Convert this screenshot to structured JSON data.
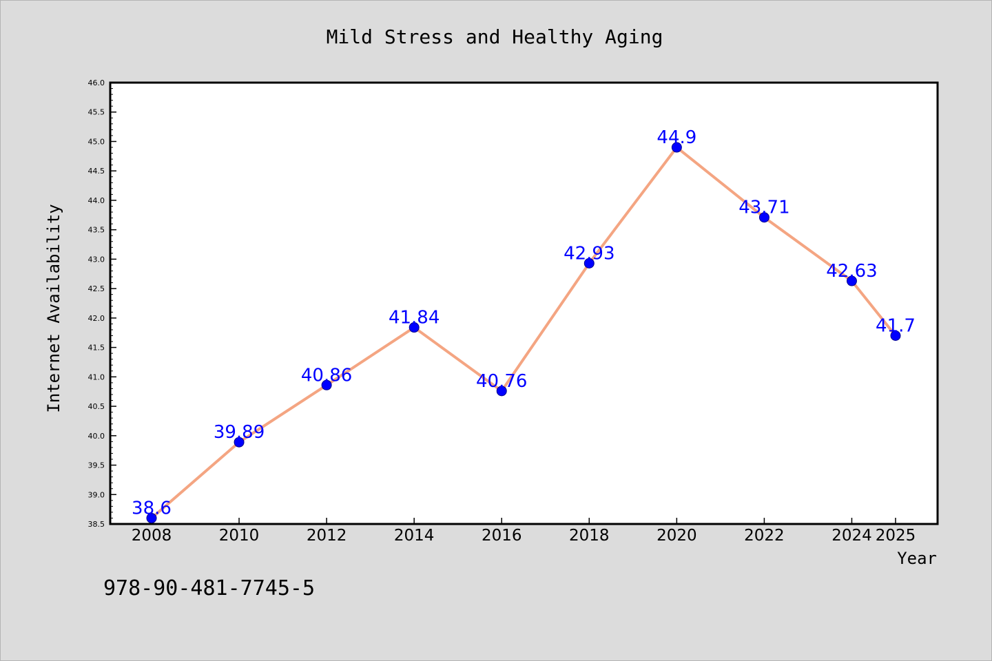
{
  "chart_data": {
    "type": "line",
    "title": "Mild Stress and Healthy Aging",
    "xlabel": "Year",
    "ylabel": "Internet Availability",
    "x": [
      2008,
      2010,
      2012,
      2014,
      2016,
      2018,
      2020,
      2022,
      2024,
      2025
    ],
    "x_tick_labels": [
      "2008",
      "2010",
      "2012",
      "2014",
      "2016",
      "2018",
      "2020",
      "2022",
      "2024",
      "2025"
    ],
    "series": [
      {
        "values": [
          38.6,
          39.89,
          40.86,
          41.84,
          40.76,
          42.93,
          44.9,
          43.71,
          42.63,
          41.7
        ],
        "labels": [
          "38.6",
          "39.89",
          "40.86",
          "41.84",
          "40.76",
          "42.93",
          "44.9",
          "43.71",
          "42.63",
          "41.7"
        ]
      }
    ],
    "ylim": [
      38.5,
      46.0
    ],
    "y_ticks": [
      "38.5",
      "39.0",
      "39.5",
      "40.0",
      "40.5",
      "41.0",
      "41.5",
      "42.0",
      "42.5",
      "43.0",
      "43.5",
      "44.0",
      "44.5",
      "45.0",
      "45.5",
      "46.0"
    ],
    "grid": false,
    "colors": {
      "line": "#f4a582",
      "marker": "#0000ff",
      "label": "#0000ff",
      "background": "#dcdcdc",
      "plot_background": "#ffffff"
    }
  },
  "footer_text": "978-90-481-7745-5"
}
